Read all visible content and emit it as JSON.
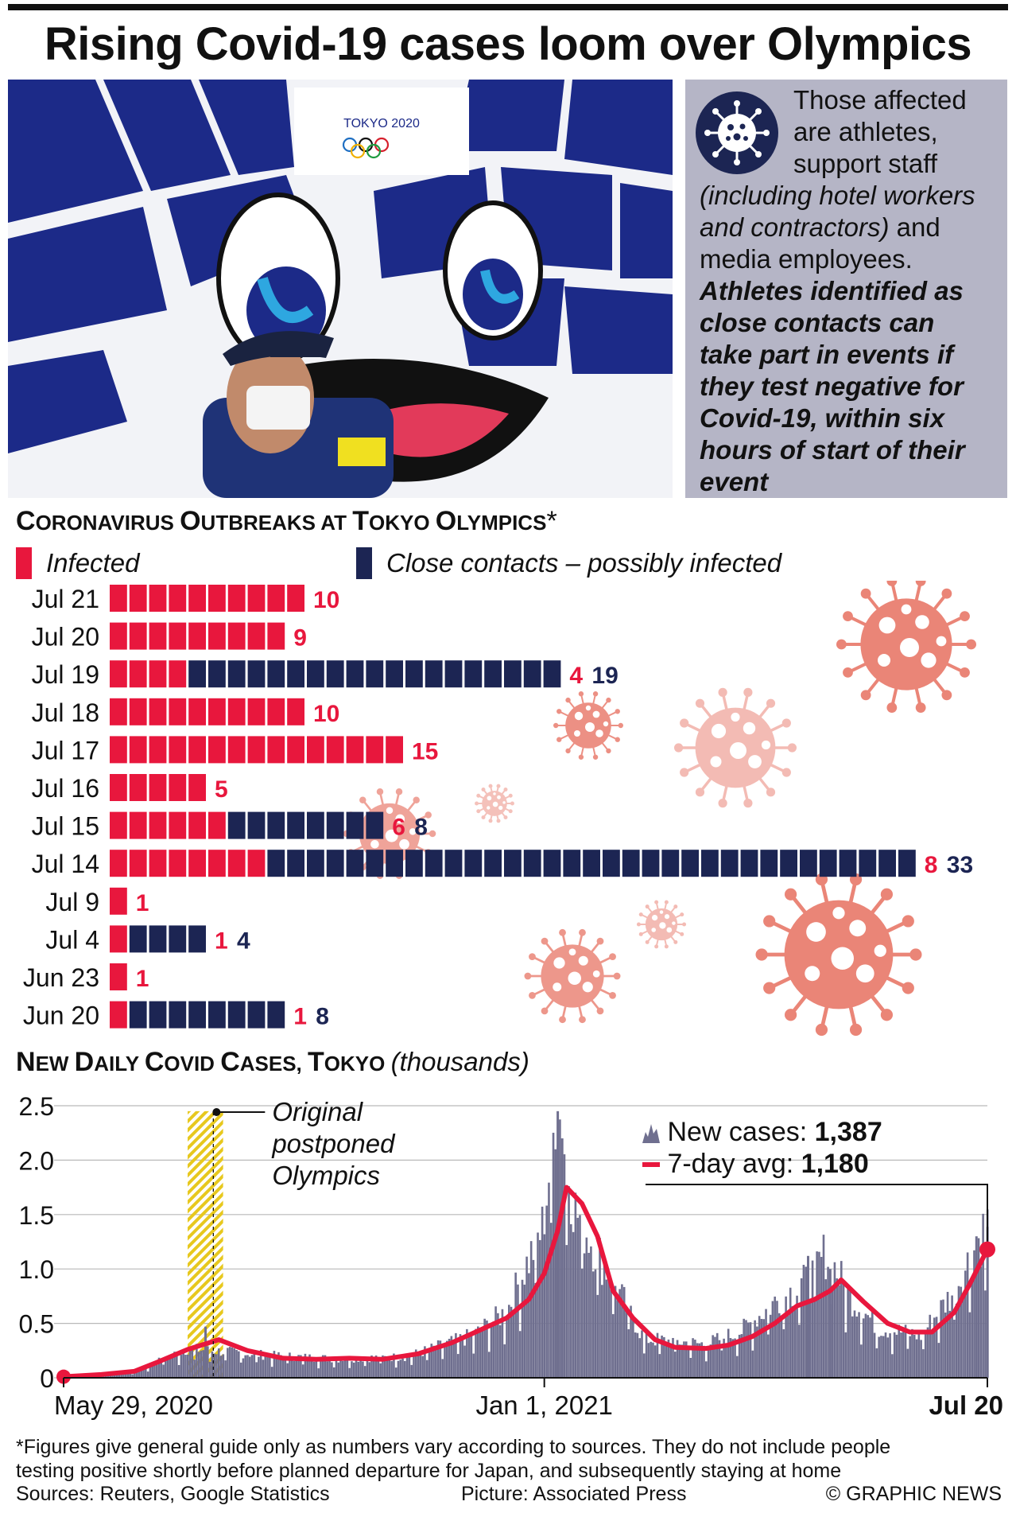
{
  "title": "Rising Covid-19 cases loom over Olympics",
  "info": {
    "line1": "Those affected",
    "line2": "are athletes,",
    "line3": "support staff",
    "line4": "(including hotel workers",
    "line5a": "and contractors)",
    "line5b": " and",
    "line6": "media employees.",
    "bold1": "Athletes identified as",
    "bold2": "close contacts can",
    "bold3": "take part in events if",
    "bold4": "they test negative for",
    "bold5": "Covid-19, within six",
    "bold6": "hours of start of their",
    "bold7": "event"
  },
  "photo": {
    "logo_text": "TOKYO 2020"
  },
  "section1": {
    "title_a": "C",
    "title_b": "ORONAVIRUS ",
    "title_c": "O",
    "title_d": "UTBREAKS AT ",
    "title_e": "T",
    "title_f": "OKYO ",
    "title_g": "O",
    "title_h": "LYMPICS",
    "asterisk": "*",
    "legend_infected": "Infected",
    "legend_contacts": "Close contacts – possibly infected"
  },
  "section2": {
    "title_a": "N",
    "title_b": "EW ",
    "title_c": "D",
    "title_d": "AILY ",
    "title_e": "C",
    "title_f": "OVID ",
    "title_g": "C",
    "title_h": "ASES, ",
    "title_i": "T",
    "title_j": "OKYO ",
    "unit": "(thousands)"
  },
  "colors": {
    "infected": "#e8173d",
    "contacts": "#1c2553",
    "area": "#6f6f8f",
    "avg": "#e8173d",
    "virus": "#ea8577",
    "postponed": "#e7c81e"
  },
  "chart_data": [
    {
      "type": "bar",
      "orientation": "horizontal",
      "stacked": true,
      "categories": [
        "Jul 21",
        "Jul 20",
        "Jul 19",
        "Jul 18",
        "Jul 17",
        "Jul 16",
        "Jul 15",
        "Jul 14",
        "Jul 9",
        "Jul 4",
        "Jun 23",
        "Jun 20"
      ],
      "series": [
        {
          "name": "Infected",
          "values": [
            10,
            9,
            4,
            10,
            15,
            5,
            6,
            8,
            1,
            1,
            1,
            1
          ]
        },
        {
          "name": "Close contacts – possibly infected",
          "values": [
            0,
            0,
            19,
            0,
            0,
            0,
            8,
            33,
            0,
            4,
            0,
            8
          ]
        }
      ]
    },
    {
      "type": "area",
      "title": "New Daily Covid Cases, Tokyo (thousands)",
      "x_tick_labels": [
        "May 29, 2020",
        "Jan 1, 2021",
        "Jul 20"
      ],
      "y_tick_labels": [
        "0",
        "0.5",
        "1.0",
        "1.5",
        "2.0",
        "2.5"
      ],
      "ylim": [
        0,
        2.5
      ],
      "annotation": [
        "Original",
        "postponed",
        "Olympics"
      ],
      "legend": {
        "new_label": "New cases: ",
        "new_value": "1,387",
        "avg_label": "7-day avg: ",
        "avg_value": "1,180"
      },
      "series": [
        {
          "name": "New cases",
          "dates": [
            "2020-05-29",
            "2020-06-30",
            "2020-07-24",
            "2020-08-31",
            "2020-09-30",
            "2020-10-31",
            "2020-11-30",
            "2020-12-15",
            "2020-12-31",
            "2021-01-07",
            "2021-01-15",
            "2021-01-31",
            "2021-02-15",
            "2021-03-15",
            "2021-03-31",
            "2021-04-15",
            "2021-05-01",
            "2021-05-08",
            "2021-05-20",
            "2021-06-01",
            "2021-06-20",
            "2021-07-05",
            "2021-07-20"
          ],
          "values": [
            0.02,
            0.06,
            0.26,
            0.2,
            0.17,
            0.19,
            0.38,
            0.6,
            1.34,
            2.45,
            1.5,
            0.9,
            0.35,
            0.3,
            0.42,
            0.68,
            0.88,
            1.12,
            0.7,
            0.45,
            0.38,
            0.78,
            1.387
          ]
        },
        {
          "name": "7-day avg",
          "dates": [
            "2020-05-29",
            "2020-06-15",
            "2020-06-30",
            "2020-07-10",
            "2020-07-24",
            "2020-08-07",
            "2020-08-20",
            "2020-09-05",
            "2020-09-20",
            "2020-10-05",
            "2020-10-20",
            "2020-11-05",
            "2020-11-20",
            "2020-12-01",
            "2020-12-15",
            "2020-12-25",
            "2021-01-01",
            "2021-01-07",
            "2021-01-11",
            "2021-01-18",
            "2021-01-25",
            "2021-02-01",
            "2021-02-10",
            "2021-02-20",
            "2021-03-01",
            "2021-03-15",
            "2021-03-25",
            "2021-04-05",
            "2021-04-15",
            "2021-04-25",
            "2021-05-03",
            "2021-05-10",
            "2021-05-15",
            "2021-05-25",
            "2021-06-05",
            "2021-06-15",
            "2021-06-25",
            "2021-07-05",
            "2021-07-12",
            "2021-07-20"
          ],
          "values": [
            0.01,
            0.03,
            0.06,
            0.14,
            0.26,
            0.35,
            0.25,
            0.18,
            0.17,
            0.18,
            0.17,
            0.22,
            0.32,
            0.42,
            0.55,
            0.72,
            0.96,
            1.35,
            1.75,
            1.6,
            1.3,
            0.8,
            0.55,
            0.35,
            0.28,
            0.27,
            0.3,
            0.38,
            0.5,
            0.66,
            0.72,
            0.8,
            0.9,
            0.7,
            0.5,
            0.42,
            0.42,
            0.6,
            0.86,
            1.18
          ]
        }
      ]
    }
  ],
  "footnote": {
    "l1": "*Figures give general guide only as numbers vary according to sources. They do not include people",
    "l2": "testing positive shortly before planned departure for Japan, and subsequently staying at home"
  },
  "sources": {
    "left": "Sources: Reuters, Google Statistics",
    "mid": "Picture: Associated Press",
    "right": "© GRAPHIC NEWS"
  }
}
